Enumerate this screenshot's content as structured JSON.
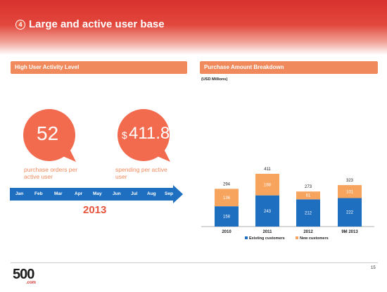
{
  "header": {
    "slide_number": "4",
    "title": "Large and active user base"
  },
  "left_panel": {
    "title": "High User Activity Level",
    "metric1": {
      "value": "52",
      "caption_line1": "purchase orders per",
      "caption_line2": "active user"
    },
    "metric2": {
      "currency": "$",
      "value": "411.8",
      "caption_line1": "spending per active",
      "caption_line2": "user"
    },
    "timeline": {
      "months": [
        "Jan",
        "Feb",
        "Mar",
        "Apr",
        "May",
        "Jun",
        "Jul",
        "Aug",
        "Sep"
      ],
      "year": "2013"
    }
  },
  "right_panel": {
    "title": "Purchase Amount Breakdown"
  },
  "chart_data": {
    "type": "bar",
    "stacked": true,
    "subtitle": "(USD Millions)",
    "categories": [
      "2010",
      "2011",
      "2012",
      "9M 2013"
    ],
    "series": [
      {
        "name": "Existing customers",
        "values": [
          158,
          243,
          212,
          222
        ],
        "color": "#1f6fc1"
      },
      {
        "name": "New customers",
        "values": [
          136,
          168,
          61,
          101
        ],
        "color": "#f6a45e"
      }
    ],
    "totals": [
      294,
      411,
      273,
      323
    ],
    "grid": false,
    "legend_position": "bottom"
  },
  "footer": {
    "logo_main": "500",
    "logo_sub": ".com",
    "page": "15"
  },
  "colors": {
    "accent": "#f08a5d",
    "brand_red": "#d8322e",
    "bar_blue": "#1f6fc1",
    "bar_orange": "#f6a45e"
  }
}
